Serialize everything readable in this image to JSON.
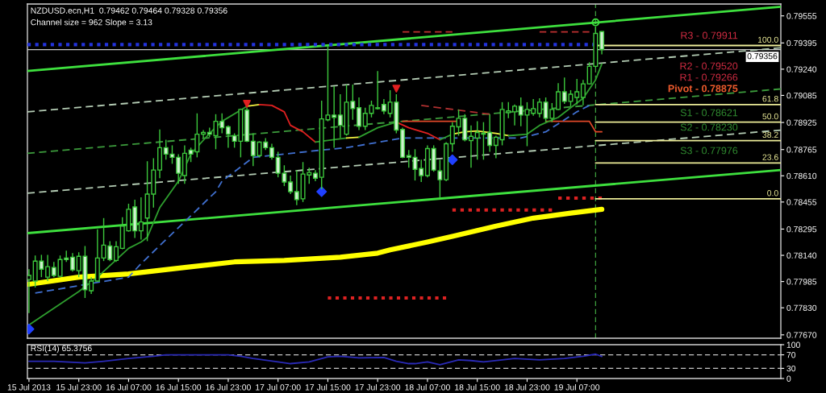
{
  "chart_data": [
    {
      "type": "candlestick",
      "title": "NZDUSD.ecn,H1  0.79462 0.79464 0.79328 0.79356",
      "subtitle": "Channel size = 962 Slope = 3.13",
      "color": "#3cc83c",
      "x": [
        "2013-07-15T15:00",
        "2013-07-15T16:00",
        "2013-07-15T17:00",
        "2013-07-15T18:00",
        "2013-07-15T19:00",
        "2013-07-15T20:00",
        "2013-07-15T21:00",
        "2013-07-15T22:00",
        "2013-07-15T23:00",
        "2013-07-16T00:00",
        "2013-07-16T01:00",
        "2013-07-16T02:00",
        "2013-07-16T03:00",
        "2013-07-16T04:00",
        "2013-07-16T05:00",
        "2013-07-16T06:00",
        "2013-07-16T07:00",
        "2013-07-16T08:00",
        "2013-07-16T09:00",
        "2013-07-16T10:00",
        "2013-07-16T11:00",
        "2013-07-16T12:00",
        "2013-07-16T13:00",
        "2013-07-16T14:00",
        "2013-07-16T15:00",
        "2013-07-16T16:00",
        "2013-07-16T17:00",
        "2013-07-16T18:00",
        "2013-07-16T19:00",
        "2013-07-16T20:00",
        "2013-07-16T21:00",
        "2013-07-16T22:00",
        "2013-07-16T23:00",
        "2013-07-17T00:00",
        "2013-07-17T01:00",
        "2013-07-17T02:00",
        "2013-07-17T03:00",
        "2013-07-17T04:00",
        "2013-07-17T05:00",
        "2013-07-17T06:00",
        "2013-07-17T07:00",
        "2013-07-17T08:00",
        "2013-07-17T09:00",
        "2013-07-17T10:00",
        "2013-07-17T11:00",
        "2013-07-17T12:00",
        "2013-07-17T13:00",
        "2013-07-17T14:00",
        "2013-07-17T15:00",
        "2013-07-17T16:00",
        "2013-07-17T17:00",
        "2013-07-17T18:00",
        "2013-07-17T19:00",
        "2013-07-17T20:00",
        "2013-07-17T21:00",
        "2013-07-17T22:00",
        "2013-07-17T23:00",
        "2013-07-18T00:00",
        "2013-07-18T01:00",
        "2013-07-18T02:00",
        "2013-07-18T03:00",
        "2013-07-18T04:00",
        "2013-07-18T05:00",
        "2013-07-18T06:00",
        "2013-07-18T07:00",
        "2013-07-18T08:00",
        "2013-07-18T09:00",
        "2013-07-18T10:00",
        "2013-07-18T11:00",
        "2013-07-18T12:00",
        "2013-07-18T13:00",
        "2013-07-18T14:00",
        "2013-07-18T15:00",
        "2013-07-18T16:00",
        "2013-07-18T17:00",
        "2013-07-18T18:00",
        "2013-07-18T19:00",
        "2013-07-18T20:00",
        "2013-07-18T21:00",
        "2013-07-18T22:00",
        "2013-07-18T23:00",
        "2013-07-19T00:00",
        "2013-07-19T01:00",
        "2013-07-19T02:00",
        "2013-07-19T03:00",
        "2013-07-19T04:00",
        "2013-07-19T05:00",
        "2013-07-19T06:00",
        "2013-07-19T07:00",
        "2013-07-19T08:00",
        "2013-07-19T09:00",
        "2013-07-19T10:00",
        "2013-07-19T11:00"
      ],
      "ohlc": [
        [
          0.77997,
          0.78058,
          0.77799,
          0.78021
        ],
        [
          0.77988,
          0.78139,
          0.7795,
          0.78106
        ],
        [
          0.78106,
          0.78143,
          0.78011,
          0.78058
        ],
        [
          0.78011,
          0.78143,
          0.77988,
          0.78073
        ],
        [
          0.78068,
          0.78101,
          0.78011,
          0.78021
        ],
        [
          0.78016,
          0.78139,
          0.78011,
          0.78115
        ],
        [
          0.78124,
          0.78167,
          0.78101,
          0.78115
        ],
        [
          0.78129,
          0.78153,
          0.78044,
          0.78054
        ],
        [
          0.78049,
          0.78158,
          0.78011,
          0.78134
        ],
        [
          0.78134,
          0.78195,
          0.77888,
          0.77936
        ],
        [
          0.77931,
          0.78011,
          0.77912,
          0.77988
        ],
        [
          0.77988,
          0.78294,
          0.77984,
          0.78124
        ],
        [
          0.78124,
          0.7836,
          0.78106,
          0.782
        ],
        [
          0.78195,
          0.78224,
          0.78106,
          0.78115
        ],
        [
          0.7811,
          0.78224,
          0.78101,
          0.78191
        ],
        [
          0.78181,
          0.78365,
          0.78176,
          0.78313
        ],
        [
          0.78285,
          0.78445,
          0.7828,
          0.78412
        ],
        [
          0.78426,
          0.78469,
          0.78242,
          0.78285
        ],
        [
          0.78285,
          0.78483,
          0.78233,
          0.78337
        ],
        [
          0.7836,
          0.78696,
          0.78224,
          0.78502
        ],
        [
          0.78502,
          0.78714,
          0.78422,
          0.78644
        ],
        [
          0.78644,
          0.78884,
          0.78596,
          0.78776
        ],
        [
          0.78776,
          0.78823,
          0.78705,
          0.78738
        ],
        [
          0.78738,
          0.7879,
          0.78681,
          0.78719
        ],
        [
          0.78719,
          0.78738,
          0.78563,
          0.78625
        ],
        [
          0.78611,
          0.7879,
          0.78563,
          0.78743
        ],
        [
          0.78762,
          0.78776,
          0.78691,
          0.78738
        ],
        [
          0.78752,
          0.78979,
          0.78719,
          0.78856
        ],
        [
          0.78856,
          0.7888,
          0.78833,
          0.78866
        ],
        [
          0.78866,
          0.78894,
          0.78838,
          0.78856
        ],
        [
          0.78847,
          0.78974,
          0.78767,
          0.78932
        ],
        [
          0.78932,
          0.78979,
          0.78861,
          0.78894
        ],
        [
          0.78899,
          0.78908,
          0.78776,
          0.78856
        ],
        [
          0.78847,
          0.78861,
          0.78776,
          0.78814
        ],
        [
          0.78814,
          0.79007,
          0.78719,
          0.79002
        ],
        [
          0.78998,
          0.79012,
          0.78809,
          0.78814
        ],
        [
          0.78814,
          0.78861,
          0.78667,
          0.78729
        ],
        [
          0.78729,
          0.78814,
          0.78719,
          0.78809
        ],
        [
          0.78809,
          0.78833,
          0.78762,
          0.78776
        ],
        [
          0.78776,
          0.78799,
          0.78705,
          0.78719
        ],
        [
          0.78719,
          0.78752,
          0.78601,
          0.78625
        ],
        [
          0.78625,
          0.78672,
          0.78549,
          0.78573
        ],
        [
          0.78573,
          0.78611,
          0.78502,
          0.78516
        ],
        [
          0.78516,
          0.78644,
          0.78436,
          0.78469
        ],
        [
          0.78474,
          0.78691,
          0.78455,
          0.7862
        ],
        [
          0.78615,
          0.78658,
          0.78563,
          0.7863
        ],
        [
          0.78625,
          0.78644,
          0.78578,
          0.78596
        ],
        [
          0.78601,
          0.79054,
          0.7853,
          0.78946
        ],
        [
          0.78941,
          0.79375,
          0.78932,
          0.78969
        ],
        [
          0.78969,
          0.79139,
          0.78776,
          0.78955
        ],
        [
          0.78969,
          0.79092,
          0.78833,
          0.78908
        ],
        [
          0.78856,
          0.79149,
          0.78847,
          0.79045
        ],
        [
          0.7905,
          0.79149,
          0.78941,
          0.79007
        ],
        [
          0.79012,
          0.79073,
          0.7888,
          0.78903
        ],
        [
          0.78903,
          0.79012,
          0.7888,
          0.78979
        ],
        [
          0.78979,
          0.79054,
          0.78955,
          0.79026
        ],
        [
          0.79007,
          0.79229,
          0.79002,
          0.79012
        ],
        [
          0.79031,
          0.79064,
          0.78974,
          0.78993
        ],
        [
          0.78979,
          0.79116,
          0.78955,
          0.79045
        ],
        [
          0.79045,
          0.79092,
          0.78861,
          0.7888
        ],
        [
          0.78884,
          0.78894,
          0.78714,
          0.78719
        ],
        [
          0.78729,
          0.78762,
          0.78658,
          0.78719
        ],
        [
          0.78719,
          0.78767,
          0.78582,
          0.78648
        ],
        [
          0.78653,
          0.78705,
          0.78573,
          0.78611
        ],
        [
          0.78611,
          0.7879,
          0.78601,
          0.78771
        ],
        [
          0.78771,
          0.7879,
          0.78634,
          0.78644
        ],
        [
          0.78639,
          0.78705,
          0.78478,
          0.78587
        ],
        [
          0.78587,
          0.78809,
          0.78578,
          0.78799
        ],
        [
          0.78799,
          0.78927,
          0.78752,
          0.78903
        ],
        [
          0.78899,
          0.79002,
          0.78847,
          0.7895
        ],
        [
          0.7895,
          0.78974,
          0.78814,
          0.78823
        ],
        [
          0.78818,
          0.78908,
          0.78658,
          0.78843
        ],
        [
          0.78833,
          0.78932,
          0.78705,
          0.78866
        ],
        [
          0.78856,
          0.78927,
          0.78705,
          0.78861
        ],
        [
          0.78866,
          0.78974,
          0.78752,
          0.7879
        ],
        [
          0.7879,
          0.78847,
          0.78714,
          0.78838
        ],
        [
          0.78823,
          0.79045,
          0.7879,
          0.79002
        ],
        [
          0.78983,
          0.79045,
          0.7895,
          0.78993
        ],
        [
          0.78988,
          0.79031,
          0.78908,
          0.79021
        ],
        [
          0.79021,
          0.79073,
          0.78903,
          0.78969
        ],
        [
          0.78969,
          0.79045,
          0.78785,
          0.79002
        ],
        [
          0.78979,
          0.79064,
          0.78965,
          0.79007
        ],
        [
          0.78979,
          0.79068,
          0.78955,
          0.79045
        ],
        [
          0.79045,
          0.79073,
          0.78927,
          0.7895
        ],
        [
          0.7895,
          0.7904,
          0.78927,
          0.79002
        ],
        [
          0.79002,
          0.79158,
          0.78998,
          0.79106
        ],
        [
          0.79106,
          0.79191,
          0.79035,
          0.7905
        ],
        [
          0.7905,
          0.79116,
          0.79021,
          0.79092
        ],
        [
          0.79073,
          0.79182,
          0.79031,
          0.79106
        ],
        [
          0.79073,
          0.79177,
          0.79026,
          0.79153
        ],
        [
          0.79153,
          0.79281,
          0.79149,
          0.79257
        ],
        [
          0.79257,
          0.79493,
          0.79248,
          0.79451
        ],
        [
          0.79462,
          0.79464,
          0.79328,
          0.79356
        ]
      ],
      "series": [
        {
          "type": "line",
          "color": "#ffff00",
          "x": [
            "2013-07-15T15:00",
            "2013-07-15T23:00",
            "2013-07-16T07:00",
            "2013-07-16T16:00",
            "2013-07-17T00:00",
            "2013-07-17T08:00",
            "2013-07-17T17:00",
            "2013-07-17T23:00",
            "2013-07-18T01:00",
            "2013-07-18T07:00",
            "2013-07-18T11:00",
            "2013-07-18T18:00",
            "2013-07-19T00:00",
            "2013-07-19T06:00",
            "2013-07-19T11:00"
          ],
          "values": [
            0.77969,
            0.78011,
            0.7803,
            0.78068,
            0.78101,
            0.7811,
            0.78129,
            0.78153,
            0.78172,
            0.78219,
            0.78252,
            0.78313,
            0.7836,
            0.78389,
            0.78412
          ]
        },
        {
          "type": "line",
          "color": "#3ee03e",
          "x": [
            "2013-07-15T14:45",
            "2013-07-20T15:45"
          ],
          "values": [
            0.79229,
            0.79609
          ]
        },
        {
          "type": "line",
          "color": "#3ee03e",
          "x": [
            "2013-07-15T14:45",
            "2013-07-20T15:45"
          ],
          "values": [
            0.78271,
            0.78644
          ]
        },
        {
          "type": "line",
          "color": "#b4ccb4",
          "line_style": "dashed",
          "x": [
            "2013-07-15T14:45",
            "2013-07-20T15:45"
          ],
          "values": [
            0.78988,
            0.79366
          ]
        },
        {
          "type": "line",
          "color": "#3c9c3c",
          "line_style": "dashed",
          "x": [
            "2013-07-15T14:45",
            "2013-07-20T15:45"
          ],
          "values": [
            0.78743,
            0.79123
          ]
        },
        {
          "type": "line",
          "color": "#b4ccb4",
          "line_style": "dashed",
          "x": [
            "2013-07-15T14:45",
            "2013-07-20T15:45"
          ],
          "values": [
            0.78507,
            0.7888
          ]
        },
        {
          "type": "line",
          "color": "#2233dd",
          "line_style": "dotted",
          "x": [
            "2013-07-15T14:45",
            "2013-07-19T10:00"
          ],
          "values": [
            0.79385,
            0.79385
          ]
        },
        {
          "type": "line",
          "color": "#dd2222",
          "line_style": "dotted",
          "x": [
            "2013-07-17T15:00",
            "2013-07-18T10:00"
          ],
          "values": [
            0.77888,
            0.77888
          ]
        },
        {
          "type": "line",
          "color": "#dd2222",
          "line_style": "dotted",
          "x": [
            "2013-07-18T11:00",
            "2013-07-19T03:00"
          ],
          "values": [
            0.78408,
            0.78408
          ]
        },
        {
          "type": "line",
          "color": "#dd2222",
          "line_style": "dotted",
          "x": [
            "2013-07-19T04:00",
            "2013-07-19T11:00"
          ],
          "values": [
            0.78478,
            0.78478
          ]
        },
        {
          "type": "line",
          "color": "#e04828",
          "x": [
            "2013-07-18T03:00",
            "2013-07-18T12:00"
          ],
          "values": [
            0.78932,
            0.78932
          ]
        },
        {
          "type": "line",
          "color": "#e04828",
          "x": [
            "2013-07-19T02:00",
            "2013-07-19T09:00",
            "2013-07-19T10:00",
            "2013-07-19T11:00"
          ],
          "values": [
            0.78932,
            0.78932,
            0.7887,
            0.7887
          ]
        },
        {
          "type": "line",
          "color": "#c03030",
          "line_style": "dashed",
          "x": [
            "2013-07-18T03:00",
            "2013-07-18T11:00"
          ],
          "values": [
            0.7946,
            0.7946
          ]
        },
        {
          "type": "line",
          "color": "#c03030",
          "line_style": "dashed",
          "x": [
            "2013-07-19T01:00",
            "2013-07-19T09:00"
          ],
          "values": [
            0.7946,
            0.7946
          ]
        },
        {
          "type": "line",
          "color": "#b03030",
          "line_style": "dashed",
          "x": [
            "2013-07-18T06:00",
            "2013-07-18T17:00"
          ],
          "values": [
            0.79026,
            0.78974
          ]
        },
        {
          "type": "line",
          "color": "#4070d0",
          "line_style": "dashed",
          "x": [
            "2013-07-15T16:00",
            "2013-07-16T07:00",
            "2013-07-16T09:00",
            "2013-07-16T21:00",
            "2013-07-16T22:00",
            "2013-07-17T03:00",
            "2013-07-17T14:00",
            "2013-07-17T18:00",
            "2013-07-18T00:00",
            "2013-07-18T03:00",
            "2013-07-18T19:00",
            "2013-07-18T22:00",
            "2013-07-19T02:00",
            "2013-07-19T07:00",
            "2013-07-19T09:00"
          ],
          "values": [
            0.77917,
            0.78011,
            0.78091,
            0.78516,
            0.78578,
            0.78719,
            0.78762,
            0.78776,
            0.78814,
            0.78833,
            0.78833,
            0.78833,
            0.7887,
            0.78988,
            0.79026
          ]
        },
        {
          "type": "line",
          "color": "#2e9e2e",
          "x": [
            "2013-07-15T15:00",
            "2013-07-15T23:00",
            "2013-07-16T02:00",
            "2013-07-16T07:00",
            "2013-07-16T09:00",
            "2013-07-16T10:00",
            "2013-07-16T12:00",
            "2013-07-16T15:00",
            "2013-07-16T17:00",
            "2013-07-16T20:00",
            "2013-07-16T22:00",
            "2013-07-17T01:00",
            "2013-07-17T02:00"
          ],
          "values": [
            0.77728,
            0.77926,
            0.78011,
            0.78181,
            0.78219,
            0.78247,
            0.78422,
            0.78578,
            0.78738,
            0.78861,
            0.78932,
            0.78998,
            0.79021
          ]
        },
        {
          "type": "line",
          "color": "#f0f040",
          "x": [
            "2013-07-17T02:00",
            "2013-07-17T04:00"
          ],
          "values": [
            0.79021,
            0.79031
          ]
        },
        {
          "type": "line",
          "color": "#e02020",
          "x": [
            "2013-07-17T04:00",
            "2013-07-17T06:00",
            "2013-07-17T08:00",
            "2013-07-17T09:00",
            "2013-07-17T11:00",
            "2013-07-17T13:00"
          ],
          "values": [
            0.79031,
            0.79026,
            0.78988,
            0.78908,
            0.7887,
            0.78809
          ]
        },
        {
          "type": "line",
          "color": "#2e9e2e",
          "x": [
            "2013-07-17T13:00",
            "2013-07-17T18:00"
          ],
          "values": [
            0.78809,
            0.78833
          ]
        },
        {
          "type": "line",
          "color": "#f0f040",
          "x": [
            "2013-07-17T18:00",
            "2013-07-17T20:00"
          ],
          "values": [
            0.78833,
            0.78838
          ]
        },
        {
          "type": "line",
          "color": "#2e9e2e",
          "x": [
            "2013-07-17T20:00",
            "2013-07-17T23:00",
            "2013-07-18T02:00"
          ],
          "values": [
            0.78838,
            0.78894,
            0.78927
          ]
        },
        {
          "type": "line",
          "color": "#e02020",
          "x": [
            "2013-07-18T02:00",
            "2013-07-18T04:00",
            "2013-07-18T07:00",
            "2013-07-18T09:00"
          ],
          "values": [
            0.78927,
            0.78894,
            0.78861,
            0.78823
          ]
        },
        {
          "type": "line",
          "color": "#2e9e2e",
          "x": [
            "2013-07-18T09:00",
            "2013-07-18T11:00"
          ],
          "values": [
            0.78823,
            0.78856
          ]
        },
        {
          "type": "line",
          "color": "#f0f040",
          "x": [
            "2013-07-18T11:00",
            "2013-07-18T13:00",
            "2013-07-18T15:00",
            "2013-07-18T18:00",
            "2013-07-18T20:00"
          ],
          "values": [
            0.78856,
            0.7887,
            0.78875,
            0.78861,
            0.78847
          ]
        },
        {
          "type": "line",
          "color": "#2e9e2e",
          "x": [
            "2013-07-18T20:00",
            "2013-07-18T23:00",
            "2013-07-19T01:00",
            "2013-07-19T04:00",
            "2013-07-19T06:00",
            "2013-07-19T08:00",
            "2013-07-19T10:00",
            "2013-07-19T11:00"
          ],
          "values": [
            0.78847,
            0.78856,
            0.78908,
            0.78955,
            0.79012,
            0.79068,
            0.79177,
            0.79271
          ]
        },
        {
          "type": "line",
          "name": "100.0",
          "color": "#ecec98",
          "x": [
            "2013-07-19T10:00",
            "2013-07-20T15:45"
          ],
          "values": [
            0.7938,
            0.7938
          ]
        },
        {
          "type": "line",
          "name": "61.8",
          "color": "#ecec98",
          "x": [
            "2013-07-19T10:00",
            "2013-07-20T15:45"
          ],
          "values": [
            0.79031,
            0.79031
          ]
        },
        {
          "type": "line",
          "name": "50.0",
          "color": "#ecec98",
          "x": [
            "2013-07-19T10:00",
            "2013-07-20T15:45"
          ],
          "values": [
            0.78927,
            0.78927
          ]
        },
        {
          "type": "line",
          "name": "38.2",
          "color": "#ecec98",
          "x": [
            "2013-07-19T10:00",
            "2013-07-20T15:45"
          ],
          "values": [
            0.78818,
            0.78818
          ]
        },
        {
          "type": "line",
          "name": "23.6",
          "color": "#ecec98",
          "x": [
            "2013-07-19T10:00",
            "2013-07-20T15:45"
          ],
          "values": [
            0.78686,
            0.78686
          ]
        },
        {
          "type": "line",
          "name": "0.0",
          "color": "#ecec98",
          "x": [
            "2013-07-19T10:00",
            "2013-07-20T15:45"
          ],
          "values": [
            0.78474,
            0.78474
          ]
        },
        {
          "type": "scatter",
          "marker": "triangle",
          "color": "#e02020",
          "x": [
            "2013-07-17T02:00",
            "2013-07-18T02:00"
          ],
          "values": [
            0.79035,
            0.79125
          ]
        },
        {
          "type": "scatter",
          "marker": "diamond",
          "color": "#2040ff",
          "x": [
            "2013-07-15T15:00",
            "2013-07-17T14:00",
            "2013-07-18T11:00"
          ],
          "values": [
            0.77704,
            0.78516,
            0.78705
          ]
        },
        {
          "type": "scatter",
          "marker": "circle",
          "color": "#3ee03e",
          "x": [
            "2013-07-19T10:00"
          ],
          "values": [
            0.79517
          ]
        }
      ],
      "ref_lines": [
        {
          "axis": "y",
          "value": 0.79356,
          "label": "0.79356",
          "color": "#c8c8c8"
        },
        {
          "axis": "x",
          "value": "2013-07-19T10:00",
          "color": "#3c9c3c",
          "line_style": "dashed"
        }
      ],
      "annotations": [
        "R3 - 0.79911",
        "R2 - 0.79520",
        "R1 - 0.79266",
        "Pivot - 0.78875",
        "S1 - 0.78621",
        "S2 - 0.78230",
        "S3 - 0.77976"
      ],
      "xlim": [
        "2013-07-15T14:45",
        "2013-07-20T15:45"
      ],
      "ylim": [
        0.7765,
        0.79625
      ],
      "yticks": [
        0.79555,
        0.79395,
        {
          "value": 0.7924,
          "label": "0.79240"
        },
        0.79085,
        0.78925,
        0.78765,
        {
          "value": 0.7861,
          "label": "0.78610"
        },
        0.78455,
        0.78295,
        {
          "value": 0.7814,
          "label": "0.78140"
        },
        0.77985,
        {
          "value": 0.7783,
          "label": "0.77830"
        },
        {
          "value": 0.7767,
          "label": "0.77670"
        }
      ],
      "tick_labels": "y"
    },
    {
      "type": "line",
      "title": "RSI(14) 65.3756",
      "x": [
        "2013-07-15T15:00",
        "2013-07-15T19:00",
        "2013-07-16T00:00",
        "2013-07-16T03:00",
        "2013-07-16T07:00",
        "2013-07-16T11:00",
        "2013-07-16T13:00",
        "2013-07-16T23:00",
        "2013-07-17T01:00",
        "2013-07-17T03:00",
        "2013-07-17T07:00",
        "2013-07-17T09:00",
        "2013-07-17T12:00",
        "2013-07-17T15:00",
        "2013-07-17T17:00",
        "2013-07-17T20:00",
        "2013-07-18T00:00",
        "2013-07-18T02:00",
        "2013-07-18T04:00",
        "2013-07-18T05:00",
        "2013-07-18T07:00",
        "2013-07-18T09:00",
        "2013-07-18T12:00",
        "2013-07-18T14:00",
        "2013-07-18T16:00",
        "2013-07-18T19:00",
        "2013-07-18T21:00",
        "2013-07-19T01:00",
        "2013-07-19T05:00",
        "2013-07-19T08:00",
        "2013-07-19T10:00",
        "2013-07-19T11:00"
      ],
      "series": [
        {
          "color": "#2a2ab8",
          "values": [
            51,
            51,
            46,
            51,
            59,
            66,
            70,
            70,
            66,
            59,
            49,
            44,
            49,
            64,
            66,
            61,
            62,
            51,
            44,
            44,
            49,
            41,
            55,
            53,
            49,
            55,
            59,
            55,
            59,
            66,
            72,
            65.3756
          ]
        }
      ],
      "ref_lines": [
        {
          "axis": "y",
          "value": 70,
          "color": "#c8c8c8",
          "line_style": "dashed"
        },
        {
          "axis": "y",
          "value": 30,
          "color": "#c8c8c8",
          "line_style": "dashed"
        }
      ],
      "xlim": [
        "2013-07-15T14:45",
        "2013-07-20T15:45"
      ],
      "xticks": [
        {
          "value": "2013-07-15T15:00",
          "label": "15 Jul 2013"
        },
        {
          "value": "2013-07-15T23:00",
          "label": "15 Jul 23:00"
        },
        {
          "value": "2013-07-16T07:00",
          "label": "16 Jul 07:00"
        },
        {
          "value": "2013-07-16T15:00",
          "label": "16 Jul 15:00"
        },
        {
          "value": "2013-07-16T23:00",
          "label": "16 Jul 23:00"
        },
        {
          "value": "2013-07-17T07:00",
          "label": "17 Jul 07:00"
        },
        {
          "value": "2013-07-17T15:00",
          "label": "17 Jul 15:00"
        },
        {
          "value": "2013-07-17T23:00",
          "label": "17 Jul 23:00"
        },
        {
          "value": "2013-07-18T07:00",
          "label": "18 Jul 07:00"
        },
        {
          "value": "2013-07-18T15:00",
          "label": "18 Jul 15:00"
        },
        {
          "value": "2013-07-18T23:00",
          "label": "18 Jul 23:00"
        },
        {
          "value": "2013-07-19T07:00",
          "label": "19 Jul 07:00"
        }
      ],
      "ylim": [
        0,
        100
      ],
      "yticks": [
        0,
        30,
        70,
        100
      ]
    }
  ]
}
